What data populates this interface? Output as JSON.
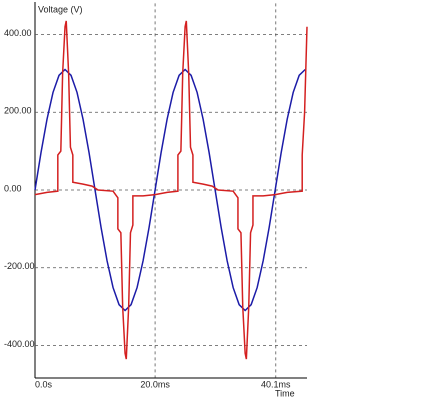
{
  "chart_data": {
    "type": "line",
    "y_label": "Voltage (V)",
    "x_label": "Time",
    "xlim": [
      0,
      45.3
    ],
    "ylim": [
      -480,
      480
    ],
    "xticks": [
      {
        "value": 0,
        "label": "0.0s"
      },
      {
        "value": 20,
        "label": "20.0ms"
      },
      {
        "value": 40.1,
        "label": "40.1ms"
      }
    ],
    "yticks": [
      {
        "value": 400,
        "label": "400.00"
      },
      {
        "value": 200,
        "label": "200.00"
      },
      {
        "value": 0,
        "label": "0.00"
      },
      {
        "value": -200,
        "label": "-200.00"
      },
      {
        "value": -400,
        "label": "-400.00"
      }
    ],
    "grid": true,
    "series": [
      {
        "color": "#1c1ca8",
        "x": [
          0,
          1,
          2,
          3,
          4,
          5,
          6,
          7,
          8,
          9,
          10,
          11,
          12,
          13,
          14,
          15,
          16,
          17,
          18,
          19,
          20,
          21,
          22,
          23,
          24,
          25,
          26,
          27,
          28,
          29,
          30,
          31,
          32,
          33,
          34,
          35,
          36,
          37,
          38,
          39,
          40,
          41,
          42,
          43,
          44,
          45
        ],
        "values": [
          0,
          96,
          182,
          251,
          295,
          310,
          295,
          251,
          182,
          96,
          0,
          -96,
          -182,
          -251,
          -295,
          -310,
          -295,
          -251,
          -182,
          -96,
          0,
          96,
          182,
          251,
          295,
          310,
          295,
          251,
          182,
          96,
          0,
          -96,
          -182,
          -251,
          -295,
          -310,
          -295,
          -251,
          -182,
          -96,
          0,
          96,
          182,
          251,
          295,
          310
        ]
      },
      {
        "color": "#d42020",
        "x": [
          0,
          2,
          3.8,
          3.8,
          4.3,
          4.6,
          5.0,
          5.2,
          5.6,
          5.9,
          6.3,
          6.3,
          8,
          9.5,
          10.5,
          13,
          13.8,
          13.8,
          14.3,
          14.6,
          15.0,
          15.2,
          15.6,
          15.9,
          16.3,
          16.3,
          18,
          20,
          22,
          23.8,
          23.8,
          24.3,
          24.6,
          25,
          25.2,
          25.6,
          25.9,
          26.3,
          26.3,
          28,
          29.5,
          30.5,
          33,
          33.8,
          33.8,
          34.3,
          34.6,
          35,
          35.2,
          35.6,
          35.9,
          36.3,
          36.3,
          38,
          40,
          42,
          44.5,
          44.5,
          44.9,
          45.3
        ],
        "values": [
          -12,
          -6,
          -3,
          90,
          100,
          300,
          420,
          435,
          300,
          110,
          90,
          20,
          15,
          10,
          0,
          -3,
          -20,
          -100,
          -110,
          -300,
          -420,
          -435,
          -300,
          -110,
          -90,
          -15,
          -15,
          -12,
          -6,
          -3,
          90,
          100,
          300,
          420,
          435,
          300,
          110,
          90,
          20,
          15,
          10,
          0,
          -3,
          -20,
          -100,
          -110,
          -300,
          -420,
          -435,
          -300,
          -110,
          -90,
          -15,
          -15,
          -12,
          -6,
          -3,
          90,
          200,
          420
        ]
      }
    ]
  }
}
